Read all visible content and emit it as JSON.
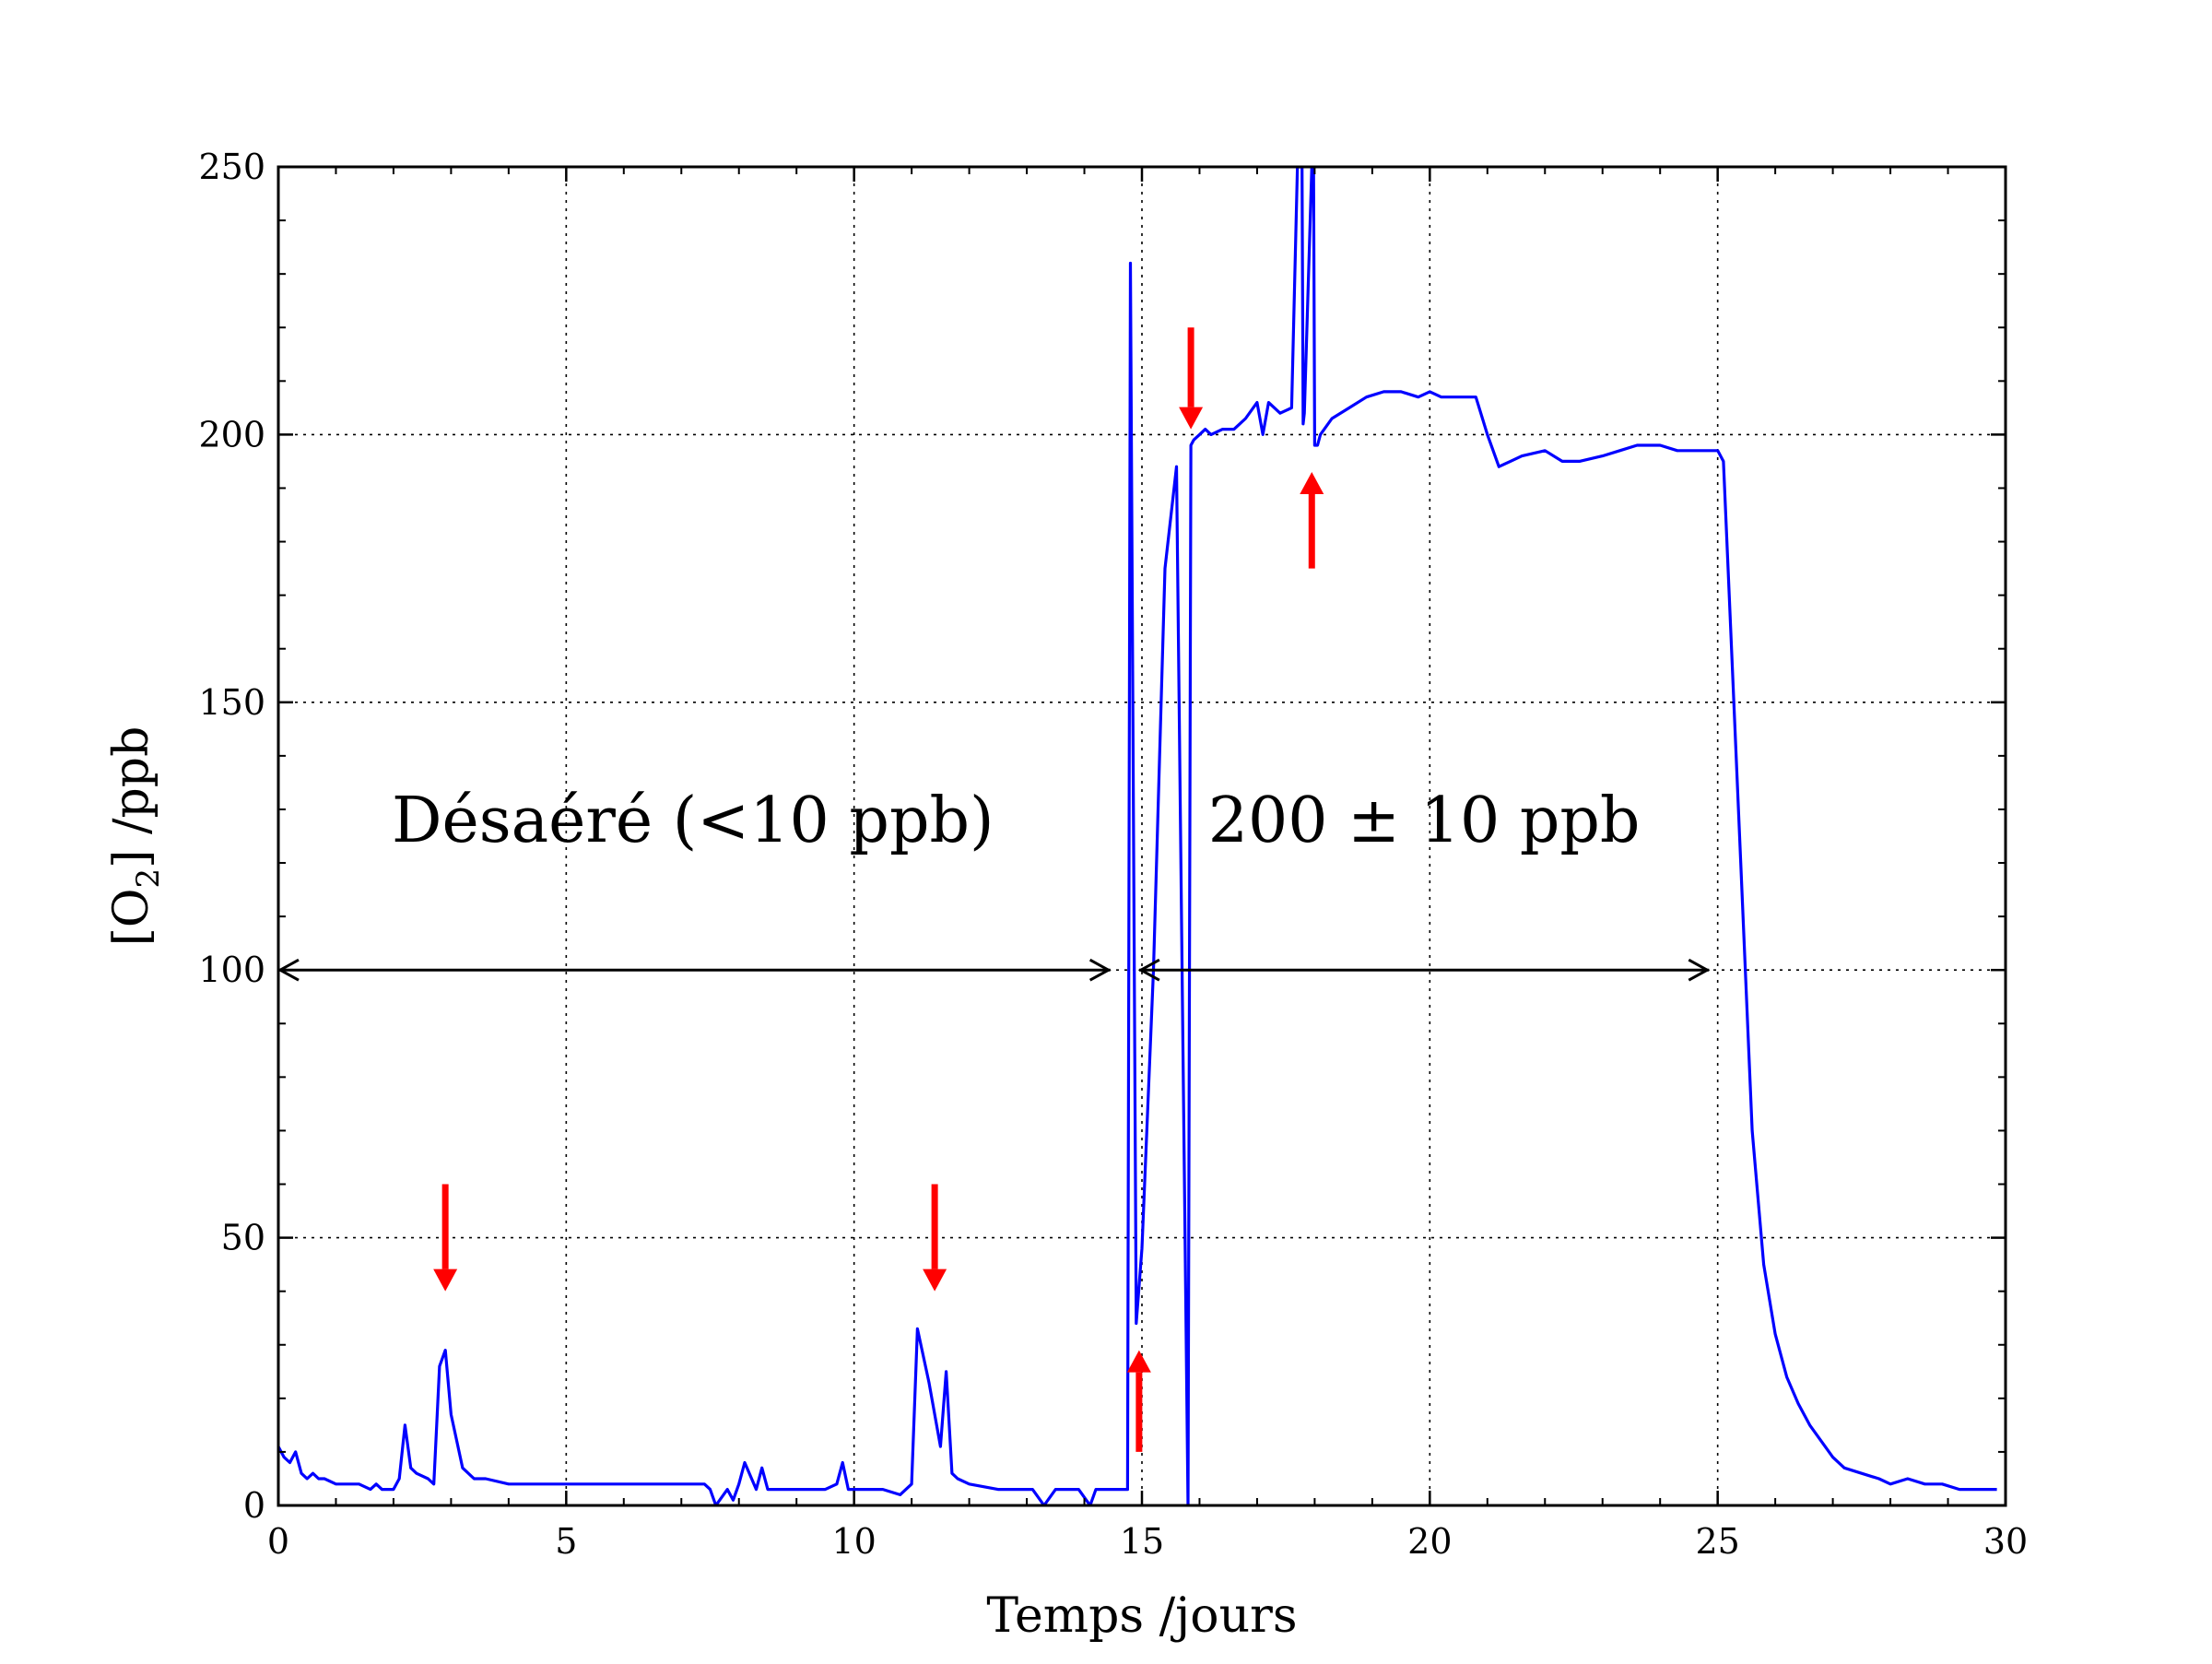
{
  "chart_data": {
    "type": "line",
    "xlabel": "Temps /jours",
    "ylabel": "[O2] /ppb",
    "ylabel_main": "[O",
    "ylabel_sub": "2",
    "ylabel_tail": "] /ppb",
    "xlim": [
      0,
      30
    ],
    "ylim": [
      0,
      250
    ],
    "xticks": [
      0,
      5,
      10,
      15,
      20,
      25,
      30
    ],
    "yticks": [
      0,
      50,
      100,
      150,
      200,
      250
    ],
    "xtick_labels": [
      "0",
      "5",
      "10",
      "15",
      "20",
      "25",
      "30"
    ],
    "ytick_labels": [
      "0",
      "50",
      "100",
      "150",
      "200",
      "250"
    ],
    "grid": true,
    "line_color": "#0000ff",
    "arrow_color": "#ff0000",
    "series": [
      {
        "x": [
          0,
          0.1,
          0.2,
          0.3,
          0.4,
          0.5,
          0.6,
          0.7,
          0.8,
          1.0,
          1.2,
          1.4,
          1.6,
          1.7,
          1.8,
          2.0,
          2.1,
          2.2,
          2.3,
          2.4,
          2.6,
          2.7,
          2.8,
          2.9,
          3.0,
          3.2,
          3.4,
          3.6,
          4.0,
          5.0,
          6.0,
          7.0,
          7.4,
          7.5,
          7.6,
          7.8,
          7.9,
          8.0,
          8.1,
          8.3,
          8.4,
          8.5,
          9.0,
          9.5,
          9.7,
          9.8,
          9.9,
          10.0,
          10.2,
          10.5,
          10.8,
          11.0,
          11.1,
          11.3,
          11.5,
          11.6,
          11.7,
          11.8,
          12.0,
          12.5,
          12.8,
          13.0,
          13.1,
          13.3,
          13.5,
          13.9,
          14.1,
          14.2,
          14.4,
          14.75,
          14.8,
          14.9,
          15.0,
          15.2,
          15.4,
          15.6,
          15.8,
          15.85,
          15.9,
          16.0,
          16.1,
          16.2,
          16.4,
          16.6,
          16.8,
          17.0,
          17.1,
          17.2,
          17.4,
          17.6,
          17.7,
          17.78,
          17.8,
          17.82,
          17.95,
          17.98,
          18.0,
          18.05,
          18.1,
          18.3,
          18.6,
          18.9,
          19.2,
          19.5,
          19.8,
          20.0,
          20.2,
          20.4,
          20.6,
          20.8,
          21.0,
          21.2,
          21.4,
          21.6,
          22.0,
          22.3,
          22.6,
          23.0,
          23.3,
          23.6,
          24.0,
          24.3,
          24.6,
          24.9,
          25.0,
          25.1,
          25.2,
          25.4,
          25.6,
          25.8,
          26.0,
          26.2,
          26.4,
          26.6,
          26.8,
          27.0,
          27.2,
          27.5,
          27.8,
          28.0,
          28.3,
          28.6,
          28.9,
          29.2,
          29.5,
          29.85
        ],
        "y": [
          11,
          9,
          8,
          10,
          6,
          5,
          6,
          5,
          5,
          4,
          4,
          4,
          3,
          4,
          3,
          3,
          5,
          15,
          7,
          6,
          5,
          4,
          26,
          29,
          17,
          7,
          5,
          5,
          4,
          4,
          4,
          4,
          4,
          3,
          0,
          3,
          1,
          4,
          8,
          3,
          7,
          3,
          3,
          3,
          4,
          8,
          3,
          3,
          3,
          3,
          2,
          4,
          33,
          23,
          11,
          25,
          6,
          5,
          4,
          3,
          3,
          3,
          3,
          0,
          3,
          3,
          0,
          3,
          3,
          3,
          232,
          34,
          48,
          100,
          175,
          194,
          0,
          198,
          199,
          200,
          201,
          200,
          201,
          201,
          203,
          206,
          200,
          206,
          204,
          205,
          250,
          250,
          202,
          204,
          250,
          250,
          198,
          198,
          200,
          203,
          205,
          207,
          208,
          208,
          207,
          208,
          207,
          207,
          207,
          207,
          200,
          194,
          195,
          196,
          197,
          195,
          195,
          196,
          197,
          198,
          198,
          197,
          197,
          197,
          197,
          195,
          170,
          120,
          70,
          45,
          32,
          24,
          19,
          15,
          12,
          9,
          7,
          6,
          5,
          4,
          5,
          4,
          4,
          3,
          3,
          3
        ]
      }
    ],
    "annotations": [
      {
        "text": "Désaéré (<10 ppb)",
        "x": 7.2,
        "y": 124
      },
      {
        "text": "200 ± 10 ppb",
        "x": 19.9,
        "y": 124
      }
    ],
    "double_arrows": [
      {
        "x1": 0,
        "x2": 14.45,
        "y": 100
      },
      {
        "x1": 14.95,
        "x2": 24.85,
        "y": 100
      }
    ],
    "arrows_down": [
      {
        "x": 2.9,
        "y_from": 60,
        "y_to": 40
      },
      {
        "x": 11.4,
        "y_from": 60,
        "y_to": 40
      },
      {
        "x": 15.85,
        "y_from": 220,
        "y_to": 201
      }
    ],
    "arrows_up": [
      {
        "x": 14.95,
        "y_from": 10,
        "y_to": 29
      },
      {
        "x": 17.95,
        "y_from": 175,
        "y_to": 193
      }
    ]
  }
}
